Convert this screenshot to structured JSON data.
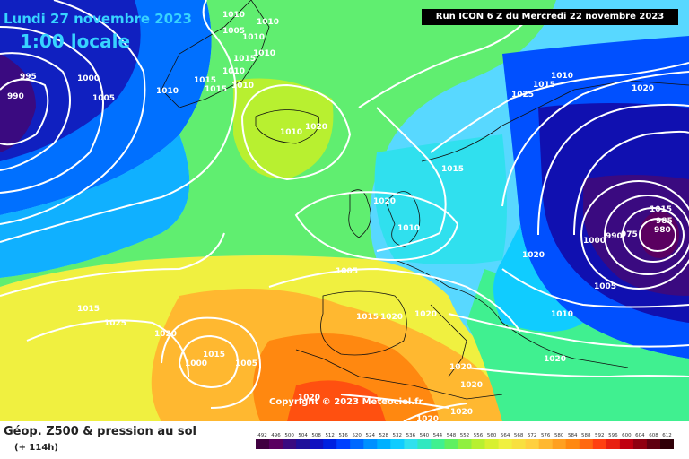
{
  "header": {
    "date_line": "Lundi 27 novembre 2023",
    "time_line": "1:00 locale",
    "run_info": "Run ICON 6 Z du Mercredi 22 novembre 2023"
  },
  "footer": {
    "parameter_title": "Géop. Z500 & pression au sol",
    "forecast_hours": "(+ 114h)",
    "copyright": "Copyright © 2023 Meteociel.fr"
  },
  "scale": {
    "values": [
      "492",
      "496",
      "500",
      "504",
      "508",
      "512",
      "516",
      "520",
      "524",
      "528",
      "532",
      "536",
      "540",
      "544",
      "548",
      "552",
      "556",
      "560",
      "564",
      "568",
      "572",
      "576",
      "580",
      "584",
      "588",
      "592",
      "596",
      "600",
      "604",
      "608",
      "612"
    ],
    "colors": [
      "#400040",
      "#5a0060",
      "#3a0a80",
      "#20109a",
      "#1010c0",
      "#0020e0",
      "#0040ff",
      "#0068ff",
      "#0090ff",
      "#00b0ff",
      "#10ccff",
      "#30e0ee",
      "#30e8c0",
      "#40f090",
      "#60f060",
      "#90f040",
      "#b8f030",
      "#d8f030",
      "#f0f040",
      "#f8e040",
      "#ffd040",
      "#ffb830",
      "#ffa020",
      "#ff8810",
      "#ff6810",
      "#ff4010",
      "#e82010",
      "#c00010",
      "#900010",
      "#600010",
      "#300008"
    ]
  },
  "isobar_labels": [
    "1010",
    "1005",
    "1010",
    "1010",
    "1015",
    "1010",
    "1015",
    "1010",
    "1015",
    "1010",
    "995",
    "990",
    "1000",
    "1005",
    "1010",
    "1020",
    "1020",
    "1010",
    "1005",
    "1015",
    "1015",
    "1025",
    "1020",
    "1015",
    "1000",
    "1005",
    "1010",
    "1020",
    "1025",
    "1015",
    "1020",
    "1015",
    "985",
    "980",
    "975",
    "990",
    "1000",
    "1005",
    "1010",
    "1020",
    "1020",
    "1015",
    "1020",
    "1020",
    "1020",
    "1020",
    "1020",
    "1020",
    "1020"
  ]
}
